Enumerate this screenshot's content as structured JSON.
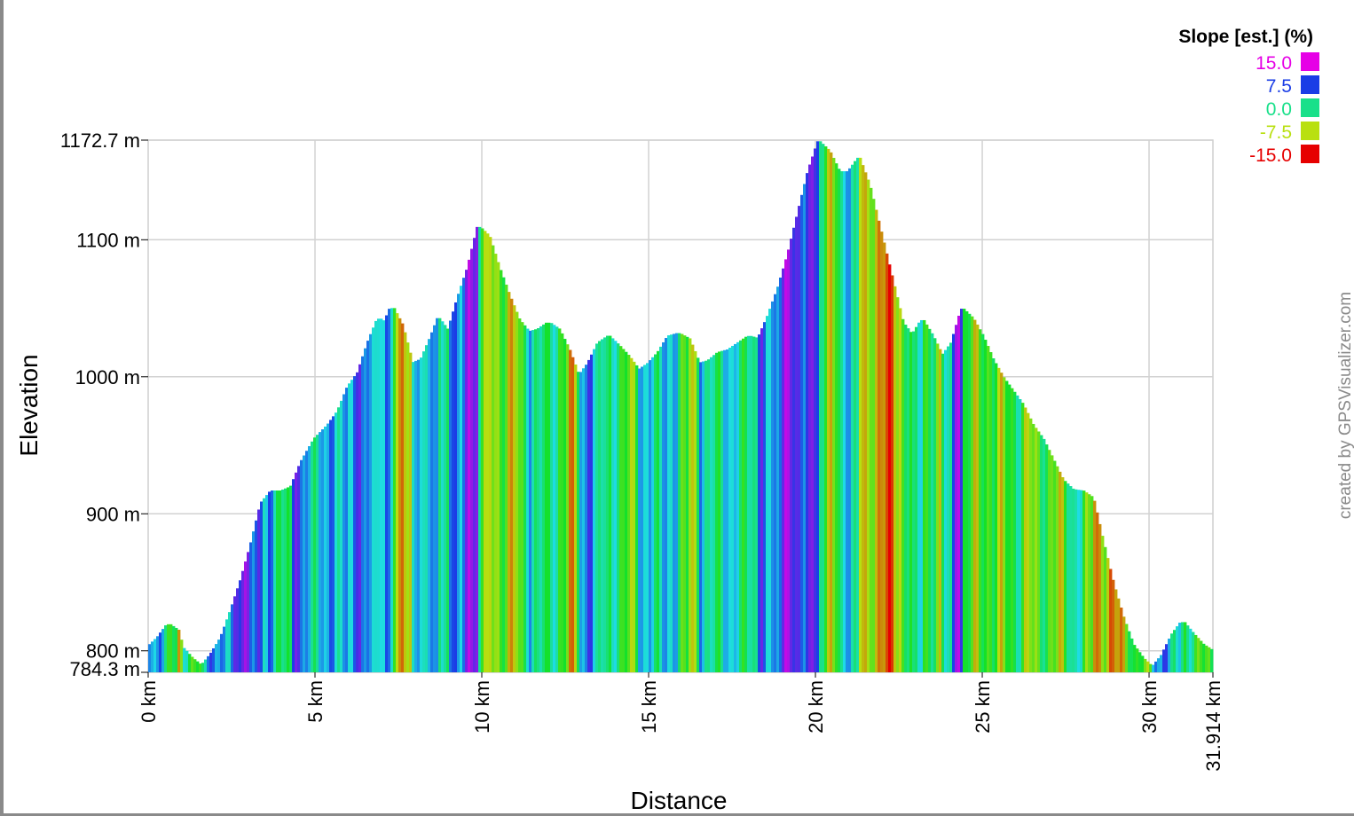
{
  "chart_data": {
    "type": "area",
    "xlabel": "Distance",
    "ylabel": "Elevation",
    "x_unit": "km",
    "xlim": [
      0,
      31.914
    ],
    "ylim": [
      784.3,
      1172.7
    ],
    "x_ticks": [
      "0 km",
      "5 km",
      "10 km",
      "15 km",
      "20 km",
      "25 km",
      "30 km",
      "31.914 km"
    ],
    "y_ticks": [
      "784.3 m",
      "800 m",
      "900 m",
      "1000 m",
      "1100 m",
      "1172.7 m"
    ],
    "grid": true,
    "legend": {
      "title": "Slope [est.] (%)",
      "position": "top-right",
      "entries": [
        {
          "label": "15.0",
          "color": "#e600e6"
        },
        {
          "label": "7.5",
          "color": "#1a3de6"
        },
        {
          "label": "0.0",
          "color": "#19e08a"
        },
        {
          "label": "-7.5",
          "color": "#b9e010"
        },
        {
          "label": "-15.0",
          "color": "#e60000"
        }
      ]
    },
    "credit": "created by GPSVisualizer.com",
    "points": [
      [
        0,
        803
      ],
      [
        0.3,
        810
      ],
      [
        0.6,
        820
      ],
      [
        0.9,
        815
      ],
      [
        1.0,
        803
      ],
      [
        1.3,
        795
      ],
      [
        1.6,
        789
      ],
      [
        1.9,
        798
      ],
      [
        2.2,
        810
      ],
      [
        2.5,
        830
      ],
      [
        2.8,
        852
      ],
      [
        3.1,
        878
      ],
      [
        3.4,
        908
      ],
      [
        3.7,
        917
      ],
      [
        4.0,
        917
      ],
      [
        4.3,
        920
      ],
      [
        4.6,
        938
      ],
      [
        5.0,
        955
      ],
      [
        5.4,
        965
      ],
      [
        5.7,
        975
      ],
      [
        6.0,
        993
      ],
      [
        6.3,
        1003
      ],
      [
        6.6,
        1025
      ],
      [
        6.9,
        1043
      ],
      [
        7.1,
        1040
      ],
      [
        7.3,
        1052
      ],
      [
        7.6,
        1038
      ],
      [
        7.9,
        1010
      ],
      [
        8.2,
        1013
      ],
      [
        8.5,
        1030
      ],
      [
        8.7,
        1043
      ],
      [
        9.0,
        1033
      ],
      [
        9.3,
        1058
      ],
      [
        9.6,
        1080
      ],
      [
        9.9,
        1110
      ],
      [
        10.2,
        1103
      ],
      [
        10.5,
        1080
      ],
      [
        10.8,
        1060
      ],
      [
        11.1,
        1042
      ],
      [
        11.4,
        1033
      ],
      [
        11.7,
        1035
      ],
      [
        12.0,
        1040
      ],
      [
        12.3,
        1035
      ],
      [
        12.6,
        1020
      ],
      [
        12.9,
        1000
      ],
      [
        13.2,
        1010
      ],
      [
        13.5,
        1025
      ],
      [
        13.8,
        1030
      ],
      [
        14.1,
        1023
      ],
      [
        14.4,
        1015
      ],
      [
        14.7,
        1005
      ],
      [
        15.0,
        1010
      ],
      [
        15.3,
        1018
      ],
      [
        15.6,
        1030
      ],
      [
        15.9,
        1032
      ],
      [
        16.2,
        1028
      ],
      [
        16.5,
        1010
      ],
      [
        16.8,
        1012
      ],
      [
        17.1,
        1018
      ],
      [
        17.4,
        1020
      ],
      [
        17.7,
        1025
      ],
      [
        18.0,
        1030
      ],
      [
        18.3,
        1028
      ],
      [
        18.6,
        1045
      ],
      [
        18.9,
        1065
      ],
      [
        19.2,
        1090
      ],
      [
        19.5,
        1120
      ],
      [
        19.8,
        1150
      ],
      [
        20.1,
        1172
      ],
      [
        20.4,
        1165
      ],
      [
        20.7,
        1150
      ],
      [
        21.0,
        1150
      ],
      [
        21.3,
        1160
      ],
      [
        21.6,
        1140
      ],
      [
        22.0,
        1100
      ],
      [
        22.3,
        1070
      ],
      [
        22.6,
        1040
      ],
      [
        22.9,
        1030
      ],
      [
        23.2,
        1042
      ],
      [
        23.5,
        1030
      ],
      [
        23.8,
        1015
      ],
      [
        24.1,
        1025
      ],
      [
        24.4,
        1050
      ],
      [
        24.7,
        1043
      ],
      [
        25.0,
        1030
      ],
      [
        25.3,
        1013
      ],
      [
        25.6,
        1000
      ],
      [
        25.9,
        990
      ],
      [
        26.2,
        980
      ],
      [
        26.5,
        965
      ],
      [
        26.8,
        955
      ],
      [
        27.1,
        940
      ],
      [
        27.4,
        925
      ],
      [
        27.7,
        918
      ],
      [
        28.0,
        917
      ],
      [
        28.3,
        912
      ],
      [
        28.6,
        880
      ],
      [
        28.9,
        850
      ],
      [
        29.2,
        825
      ],
      [
        29.5,
        805
      ],
      [
        29.8,
        795
      ],
      [
        30.1,
        788
      ],
      [
        30.4,
        797
      ],
      [
        30.7,
        812
      ],
      [
        31.0,
        822
      ],
      [
        31.3,
        813
      ],
      [
        31.6,
        805
      ],
      [
        31.914,
        800
      ]
    ]
  }
}
